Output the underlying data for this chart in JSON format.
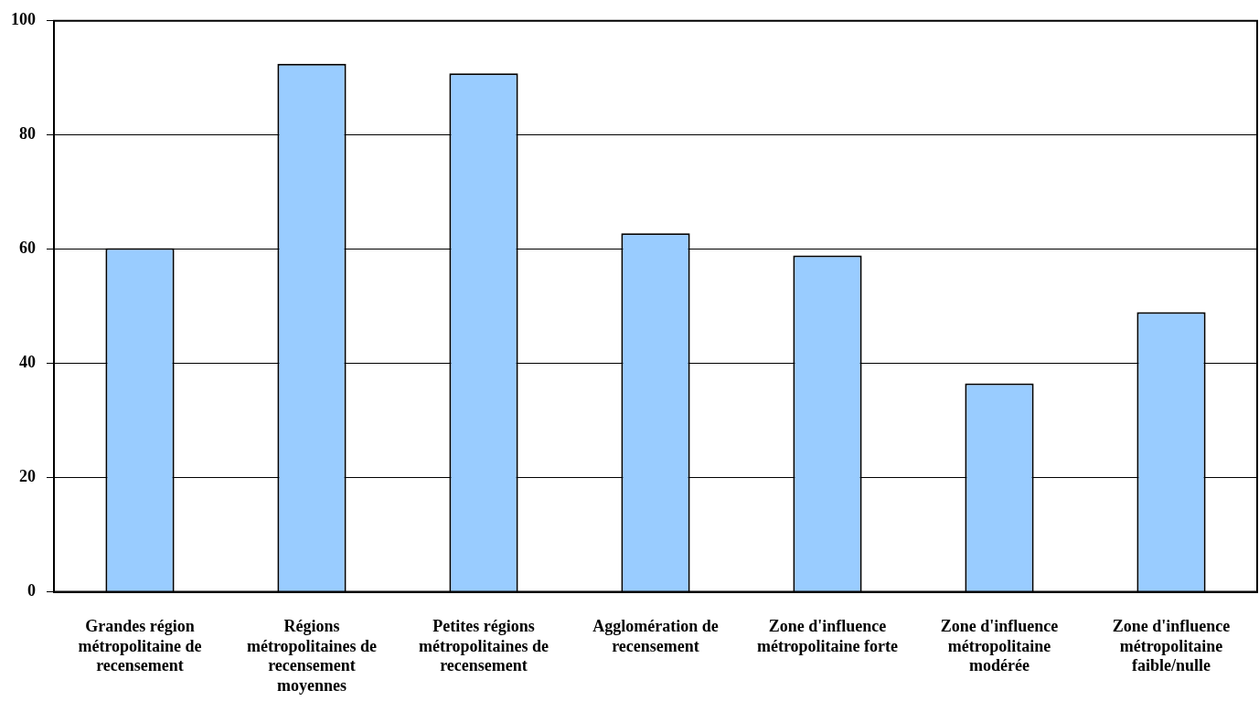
{
  "chart_data": {
    "type": "bar",
    "categories": [
      "Grandes région métropolitaine de recensement",
      "Régions métropolitaines de recensement moyennes",
      "Petites régions métropolitaines de recensement",
      "Agglomération de recensement",
      "Zone d'influence métropolitaine forte",
      "Zone d'influence métropolitaine modérée",
      "Zone d'influence métropolitaine faible/nulle"
    ],
    "values": [
      60.2,
      92.5,
      90.8,
      62.8,
      58.9,
      36.5,
      49.0
    ],
    "color": "#99ccff",
    "ylim": [
      0,
      100
    ],
    "yticks": [
      0,
      20,
      40,
      60,
      80,
      100
    ],
    "grid": "y",
    "legend": false
  }
}
